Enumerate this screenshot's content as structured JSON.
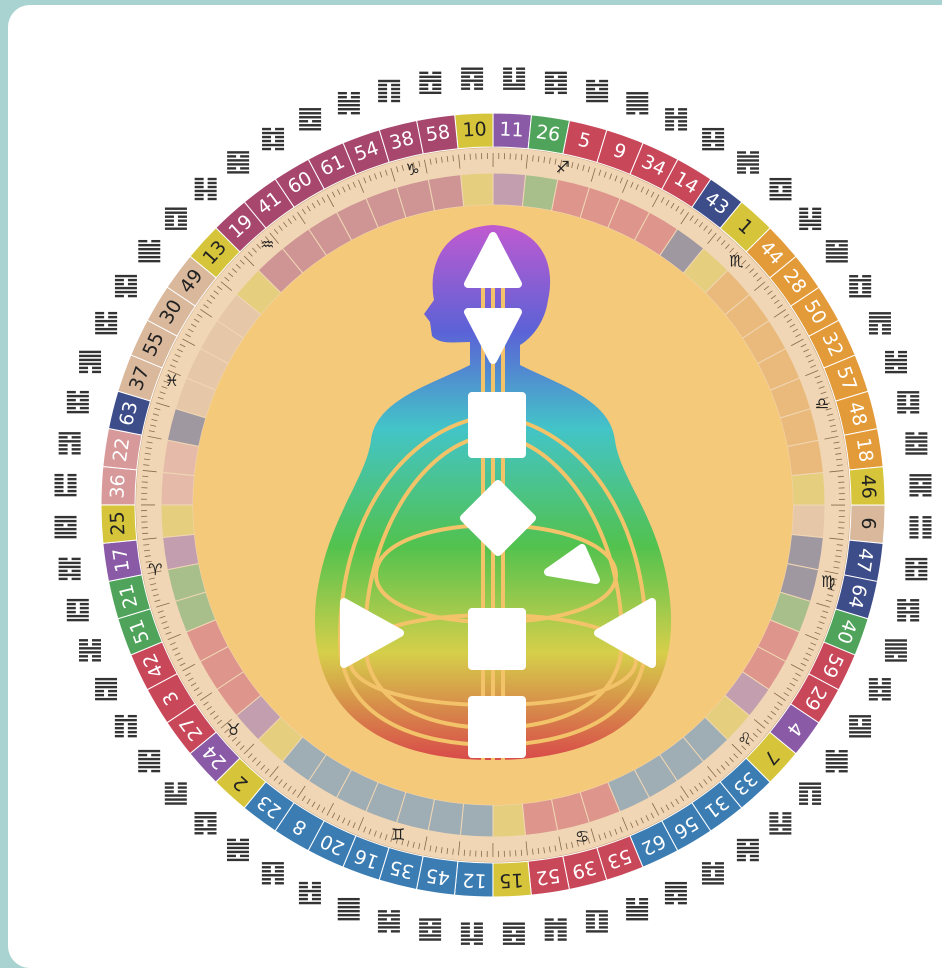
{
  "gates": [
    "10",
    "11",
    "26",
    "5",
    "9",
    "34",
    "14",
    "43",
    "1",
    "44",
    "28",
    "50",
    "32",
    "57",
    "48",
    "18",
    "46",
    "6",
    "47",
    "64",
    "40",
    "59",
    "29",
    "4",
    "7",
    "33",
    "31",
    "56",
    "62",
    "53",
    "39",
    "52",
    "15",
    "12",
    "45",
    "35",
    "16",
    "20",
    "8",
    "23",
    "2",
    "24",
    "27",
    "3",
    "42",
    "51",
    "21",
    "17",
    "25",
    "36",
    "22",
    "63",
    "37",
    "55",
    "30",
    "49",
    "13",
    "19",
    "41",
    "60",
    "61",
    "54",
    "38",
    "58"
  ],
  "signs": [
    "♑",
    "♐",
    "♏",
    "♎",
    "♍",
    "♌",
    "♋",
    "♊",
    "♉",
    "♈",
    "♓",
    "♒"
  ]
}
